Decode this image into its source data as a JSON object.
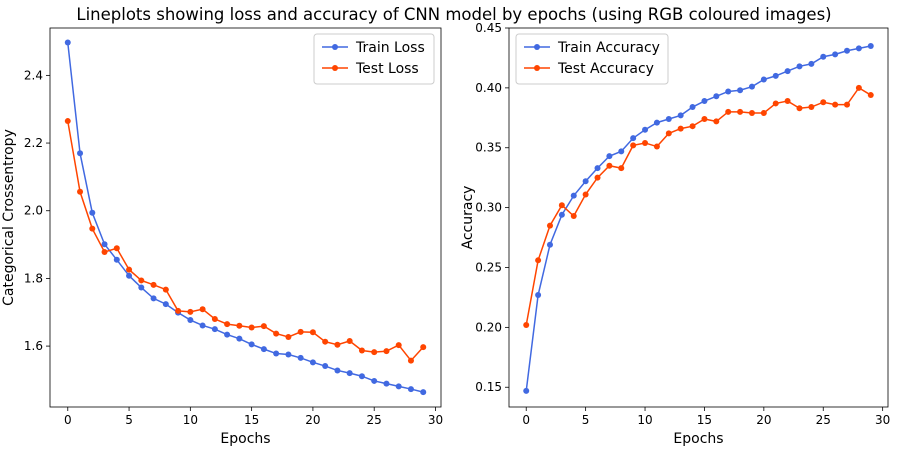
{
  "figure": {
    "title": "Lineplots showing loss and accuracy of CNN model by epochs (using RGB coloured images)"
  },
  "chart_data": [
    {
      "type": "line",
      "xlabel": "Epochs",
      "ylabel": "Categorical Crossentropy",
      "xlim": [
        -1.45,
        30.45
      ],
      "ylim": [
        1.42,
        2.54
      ],
      "xticks": [
        0,
        5,
        10,
        15,
        20,
        25,
        30
      ],
      "yticks": [
        1.6,
        1.8,
        2.0,
        2.2,
        2.4
      ],
      "ytick_format": 1,
      "grid": false,
      "legend_position": "top-right",
      "series": [
        {
          "name": "Train Loss",
          "color": "#4169E1",
          "x": [
            0,
            1,
            2,
            3,
            4,
            5,
            6,
            7,
            8,
            9,
            10,
            11,
            12,
            13,
            14,
            15,
            16,
            17,
            18,
            19,
            20,
            21,
            22,
            23,
            24,
            25,
            26,
            27,
            28,
            29
          ],
          "y": [
            2.497,
            2.17,
            1.994,
            1.901,
            1.855,
            1.808,
            1.773,
            1.741,
            1.724,
            1.699,
            1.677,
            1.661,
            1.65,
            1.634,
            1.622,
            1.605,
            1.591,
            1.578,
            1.575,
            1.565,
            1.552,
            1.541,
            1.528,
            1.52,
            1.511,
            1.497,
            1.489,
            1.481,
            1.473,
            1.464
          ]
        },
        {
          "name": "Test Loss",
          "color": "#FF4500",
          "x": [
            0,
            1,
            2,
            3,
            4,
            5,
            6,
            7,
            8,
            9,
            10,
            11,
            12,
            13,
            14,
            15,
            16,
            17,
            18,
            19,
            20,
            21,
            22,
            23,
            24,
            25,
            26,
            27,
            28,
            29
          ],
          "y": [
            2.265,
            2.056,
            1.947,
            1.878,
            1.889,
            1.826,
            1.794,
            1.781,
            1.767,
            1.704,
            1.701,
            1.709,
            1.68,
            1.665,
            1.66,
            1.655,
            1.659,
            1.637,
            1.627,
            1.642,
            1.641,
            1.613,
            1.604,
            1.615,
            1.587,
            1.582,
            1.585,
            1.603,
            1.557,
            1.597
          ]
        }
      ]
    },
    {
      "type": "line",
      "xlabel": "Epochs",
      "ylabel": "Accuracy",
      "xlim": [
        -1.45,
        30.45
      ],
      "ylim": [
        0.1335,
        0.45
      ],
      "xticks": [
        0,
        5,
        10,
        15,
        20,
        25,
        30
      ],
      "yticks": [
        0.15,
        0.2,
        0.25,
        0.3,
        0.35,
        0.4,
        0.45
      ],
      "ytick_format": 2,
      "grid": false,
      "legend_position": "top-left",
      "series": [
        {
          "name": "Train Accuracy",
          "color": "#4169E1",
          "x": [
            0,
            1,
            2,
            3,
            4,
            5,
            6,
            7,
            8,
            9,
            10,
            11,
            12,
            13,
            14,
            15,
            16,
            17,
            18,
            19,
            20,
            21,
            22,
            23,
            24,
            25,
            26,
            27,
            28,
            29
          ],
          "y": [
            0.147,
            0.227,
            0.269,
            0.294,
            0.31,
            0.322,
            0.333,
            0.343,
            0.347,
            0.358,
            0.365,
            0.371,
            0.374,
            0.377,
            0.384,
            0.389,
            0.393,
            0.397,
            0.398,
            0.401,
            0.407,
            0.41,
            0.414,
            0.418,
            0.42,
            0.426,
            0.428,
            0.431,
            0.433,
            0.435
          ]
        },
        {
          "name": "Test Accuracy",
          "color": "#FF4500",
          "x": [
            0,
            1,
            2,
            3,
            4,
            5,
            6,
            7,
            8,
            9,
            10,
            11,
            12,
            13,
            14,
            15,
            16,
            17,
            18,
            19,
            20,
            21,
            22,
            23,
            24,
            25,
            26,
            27,
            28,
            29
          ],
          "y": [
            0.202,
            0.256,
            0.285,
            0.302,
            0.293,
            0.311,
            0.325,
            0.335,
            0.333,
            0.352,
            0.354,
            0.351,
            0.362,
            0.366,
            0.368,
            0.374,
            0.372,
            0.38,
            0.38,
            0.379,
            0.379,
            0.387,
            0.389,
            0.383,
            0.384,
            0.388,
            0.386,
            0.386,
            0.4,
            0.394
          ]
        }
      ]
    }
  ]
}
